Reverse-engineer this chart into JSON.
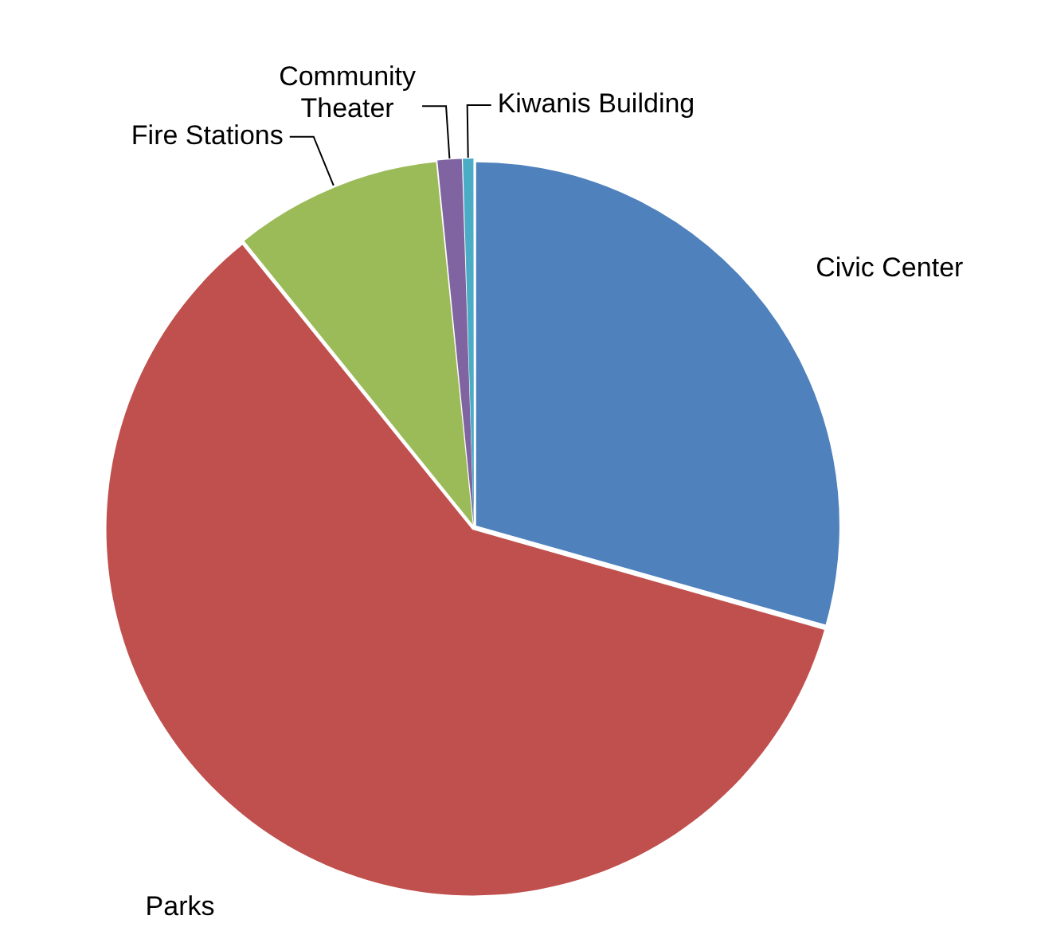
{
  "chart_data": {
    "type": "pie",
    "categories": [
      "Civic Center",
      "Parks",
      "Fire Stations",
      "Community Theater",
      "Kiwanis Building"
    ],
    "values": [
      29.4,
      59.8,
      9.2,
      1.1,
      0.5
    ],
    "colors": [
      "#4f81bd",
      "#c0504d",
      "#9bbb59",
      "#8064a2",
      "#4bacc6"
    ],
    "legend": false
  }
}
